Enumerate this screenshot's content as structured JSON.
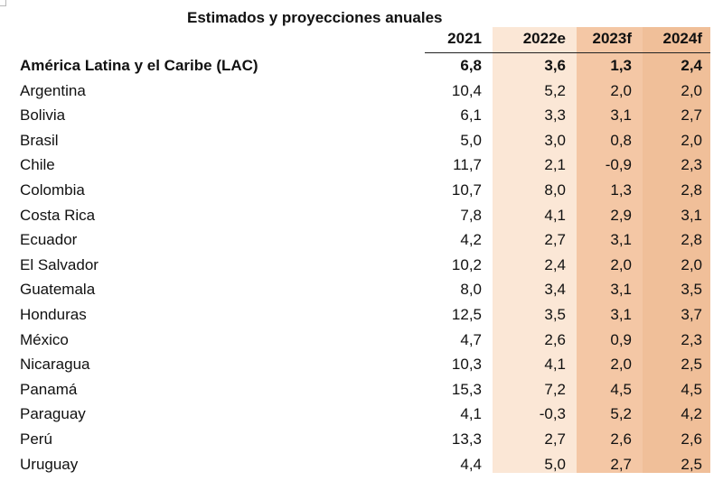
{
  "title": "Estimados y proyecciones anuales",
  "columns": [
    "2021",
    "2022e",
    "2023f",
    "2024f"
  ],
  "rows": [
    {
      "country": "América Latina y el Caribe (LAC)",
      "values": [
        "6,8",
        "3,6",
        "1,3",
        "2,4"
      ],
      "bold": true
    },
    {
      "country": "Argentina",
      "values": [
        "10,4",
        "5,2",
        "2,0",
        "2,0"
      ]
    },
    {
      "country": "Bolivia",
      "values": [
        "6,1",
        "3,3",
        "3,1",
        "2,7"
      ]
    },
    {
      "country": "Brasil",
      "values": [
        "5,0",
        "3,0",
        "0,8",
        "2,0"
      ]
    },
    {
      "country": "Chile",
      "values": [
        "11,7",
        "2,1",
        "-0,9",
        "2,3"
      ]
    },
    {
      "country": "Colombia",
      "values": [
        "10,7",
        "8,0",
        "1,3",
        "2,8"
      ]
    },
    {
      "country": "Costa Rica",
      "values": [
        "7,8",
        "4,1",
        "2,9",
        "3,1"
      ]
    },
    {
      "country": "Ecuador",
      "values": [
        "4,2",
        "2,7",
        "3,1",
        "2,8"
      ]
    },
    {
      "country": "El Salvador",
      "values": [
        "10,2",
        "2,4",
        "2,0",
        "2,0"
      ]
    },
    {
      "country": "Guatemala",
      "values": [
        "8,0",
        "3,4",
        "3,1",
        "3,5"
      ]
    },
    {
      "country": "Honduras",
      "values": [
        "12,5",
        "3,5",
        "3,1",
        "3,7"
      ]
    },
    {
      "country": "México",
      "values": [
        "4,7",
        "2,6",
        "0,9",
        "2,3"
      ]
    },
    {
      "country": "Nicaragua",
      "values": [
        "10,3",
        "4,1",
        "2,0",
        "2,5"
      ]
    },
    {
      "country": "Panamá",
      "values": [
        "15,3",
        "7,2",
        "4,5",
        "4,5"
      ]
    },
    {
      "country": "Paraguay",
      "values": [
        "4,1",
        "-0,3",
        "5,2",
        "4,2"
      ]
    },
    {
      "country": "Perú",
      "values": [
        "13,3",
        "2,7",
        "2,6",
        "2,6"
      ]
    },
    {
      "country": "Uruguay",
      "values": [
        "4,4",
        "5,0",
        "2,7",
        "2,5"
      ]
    }
  ],
  "colors": {
    "shade_2022e": "#fbe7d6",
    "shade_2023f": "#f4c7a5",
    "shade_2024f": "#f0bf99",
    "text": "#111111"
  }
}
